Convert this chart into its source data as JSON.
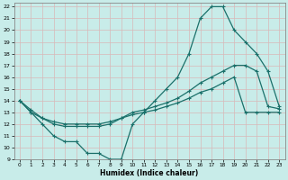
{
  "xlabel": "Humidex (Indice chaleur)",
  "xlim": [
    -0.5,
    23.5
  ],
  "ylim": [
    9,
    22.3
  ],
  "xticks": [
    0,
    1,
    2,
    3,
    4,
    5,
    6,
    7,
    8,
    9,
    10,
    11,
    12,
    13,
    14,
    15,
    16,
    17,
    18,
    19,
    20,
    21,
    22,
    23
  ],
  "yticks": [
    9,
    10,
    11,
    12,
    13,
    14,
    15,
    16,
    17,
    18,
    19,
    20,
    21,
    22
  ],
  "bg_color": "#c8ece9",
  "grid_color": "#b0d8d4",
  "line_color": "#1a706a",
  "line1_x": [
    0,
    1,
    2,
    3,
    4,
    5,
    6,
    7,
    8,
    9,
    10,
    11,
    12,
    13,
    14,
    15,
    16,
    17,
    18,
    19,
    20,
    21,
    22,
    23
  ],
  "line1_y": [
    14,
    13,
    12,
    11,
    10.5,
    10.5,
    9.5,
    9.5,
    9,
    9,
    12,
    13,
    14,
    15,
    16,
    18,
    21,
    22,
    22,
    20,
    19,
    18,
    16.5,
    13.5
  ],
  "line2_x": [
    0,
    1,
    2,
    3,
    4,
    5,
    6,
    7,
    8,
    9,
    10,
    11,
    12,
    13,
    14,
    15,
    16,
    17,
    18,
    19,
    20,
    21,
    22,
    23
  ],
  "line2_y": [
    14,
    13,
    12.5,
    12.2,
    12,
    12,
    12,
    12,
    12.2,
    12.5,
    13,
    13.2,
    13.5,
    13.8,
    14.2,
    14.8,
    15.5,
    16,
    16.5,
    17,
    17,
    16.5,
    13.5,
    13.3
  ],
  "line3_x": [
    0,
    1,
    2,
    3,
    4,
    5,
    6,
    7,
    8,
    9,
    10,
    11,
    12,
    13,
    14,
    15,
    16,
    17,
    18,
    19,
    20,
    21,
    22,
    23
  ],
  "line3_y": [
    14,
    13.2,
    12.5,
    12,
    11.8,
    11.8,
    11.8,
    11.8,
    12,
    12.5,
    12.8,
    13,
    13.2,
    13.5,
    13.8,
    14.2,
    14.7,
    15,
    15.5,
    16,
    13,
    13,
    13,
    13
  ]
}
